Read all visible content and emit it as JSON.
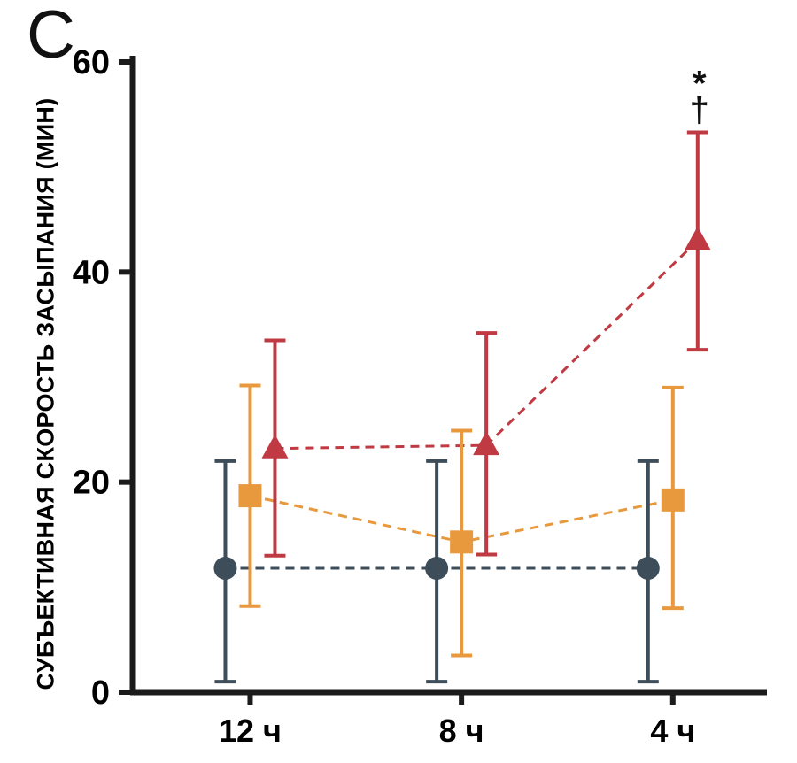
{
  "panel_label": "C",
  "chart_data": {
    "type": "line",
    "subtype": "point-error-bars",
    "title": "",
    "xlabel": "",
    "ylabel": "СУБЪЕКТИВНАЯ СКОРОСТЬ ЗАСЫПАНИЯ (МИН)",
    "categories": [
      "12 ч",
      "8 ч",
      "4 ч"
    ],
    "ylim": [
      0,
      60
    ],
    "yticks": [
      0,
      20,
      40,
      60
    ],
    "grid": false,
    "legend": "none",
    "axis_color": "#1b1b1b",
    "line_style": "dashed",
    "series": [
      {
        "name": "circle-series",
        "marker": "circle",
        "color": "#3d4e5a",
        "values": [
          11.8,
          11.8,
          11.8
        ],
        "err_low": [
          1.0,
          1.0,
          1.0
        ],
        "err_high": [
          22.0,
          22.0,
          22.0
        ]
      },
      {
        "name": "square-series",
        "marker": "square",
        "color": "#e8993e",
        "values": [
          18.7,
          14.3,
          18.3
        ],
        "err_low": [
          8.2,
          3.5,
          8.0
        ],
        "err_high": [
          29.2,
          24.9,
          29.0
        ]
      },
      {
        "name": "triangle-series",
        "marker": "triangle",
        "color": "#bf3a42",
        "values": [
          23.2,
          23.5,
          43.0
        ],
        "err_low": [
          13.0,
          13.1,
          32.6
        ],
        "err_high": [
          33.5,
          34.2,
          53.3
        ]
      }
    ],
    "annotations": [
      {
        "text": "*",
        "series": "triangle-series",
        "category_index": 2
      },
      {
        "text": "†",
        "series": "triangle-series",
        "category_index": 2
      }
    ]
  }
}
